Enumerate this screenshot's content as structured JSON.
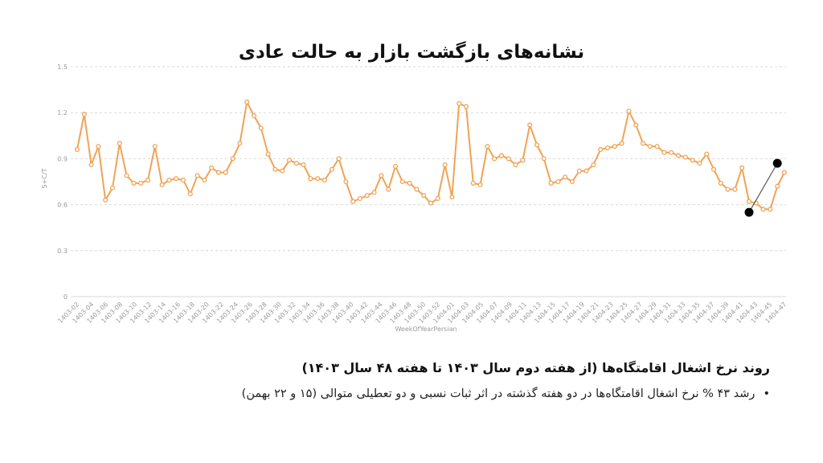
{
  "title": "نشانه‌های بازگشت بازار به حالت عادی",
  "caption": {
    "heading": "روند نرخ اشغال اقامتگاه‌ها (از هفته دوم سال ۱۴۰۳ تا هفته ۴۸ سال ۱۴۰۳)",
    "bullet": "رشد ۴۳ % نرخ اشغال اقامتگاه‌ها در دو هفته گذشته در اثر ثبات نسبی و دو تعطیلی متوالی (۱۵ و ۲۲ بهمن)",
    "bullet_marker": "•"
  },
  "chart_data": {
    "type": "line",
    "xlabel": "WeekOfYearPersian",
    "ylabel": "S+C/T",
    "ylim": [
      0,
      1.5
    ],
    "yticks": [
      "0",
      "0.3",
      "0.6",
      "0.9",
      "1.2",
      "1.5"
    ],
    "grid": true,
    "line_color": "#f0a354",
    "x_tick_labels": [
      "1403-02",
      "1403-04",
      "1403-06",
      "1403-08",
      "1403-10",
      "1403-12",
      "1403-14",
      "1403-16",
      "1403-18",
      "1403-20",
      "1403-22",
      "1403-24",
      "1403-26",
      "1403-28",
      "1403-30",
      "1403-32",
      "1403-34",
      "1403-36",
      "1403-38",
      "1403-40",
      "1403-42",
      "1403-44",
      "1403-46",
      "1403-48",
      "1403-50",
      "1403-52",
      "1404-01",
      "1404-03",
      "1404-05",
      "1404-07",
      "1404-09",
      "1404-11",
      "1404-13",
      "1404-15",
      "1404-17",
      "1404-19",
      "1404-21",
      "1404-23",
      "1404-25",
      "1404-27",
      "1404-29",
      "1404-31",
      "1404-33",
      "1404-35",
      "1404-37",
      "1404-39",
      "1404-41",
      "1404-43",
      "1404-45",
      "1404-47"
    ],
    "values": [
      0.96,
      1.19,
      0.86,
      0.98,
      0.63,
      0.71,
      1.0,
      0.79,
      0.74,
      0.74,
      0.76,
      0.98,
      0.73,
      0.76,
      0.77,
      0.76,
      0.67,
      0.79,
      0.76,
      0.84,
      0.81,
      0.81,
      0.9,
      1.0,
      1.27,
      1.18,
      1.1,
      0.93,
      0.83,
      0.82,
      0.89,
      0.87,
      0.86,
      0.77,
      0.77,
      0.76,
      0.83,
      0.9,
      0.75,
      0.62,
      0.64,
      0.66,
      0.68,
      0.79,
      0.7,
      0.85,
      0.75,
      0.74,
      0.7,
      0.66,
      0.61,
      0.64,
      0.86,
      0.65,
      1.26,
      1.24,
      0.74,
      0.73,
      0.98,
      0.9,
      0.92,
      0.9,
      0.86,
      0.89,
      1.12,
      0.99,
      0.9,
      0.74,
      0.75,
      0.78,
      0.75,
      0.82,
      0.82,
      0.86,
      0.96,
      0.97,
      0.98,
      1.0,
      1.21,
      1.12,
      1.0,
      0.98,
      0.98,
      0.94,
      0.94,
      0.92,
      0.91,
      0.89,
      0.87,
      0.93,
      0.83,
      0.74,
      0.7,
      0.7,
      0.84,
      0.62,
      0.61,
      0.57,
      0.57,
      0.72,
      0.81
    ],
    "annotation": {
      "from_value": 0.55,
      "to_value": 0.87,
      "color": "#000000"
    }
  }
}
